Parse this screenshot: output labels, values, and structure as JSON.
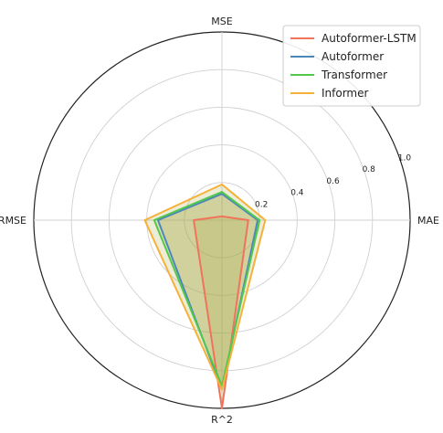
{
  "chart_data": {
    "type": "radar",
    "axes": [
      "MSE",
      "MAE",
      "R^2",
      "RMSE"
    ],
    "radial_ticks": [
      "0.2",
      "0.4",
      "0.6",
      "0.8",
      "1.0"
    ],
    "radial_range": [
      0,
      1.0
    ],
    "grid": true,
    "legend_position": "top-right",
    "series": [
      {
        "name": "Autoformer-LSTM",
        "color": "#f0735a",
        "values": [
          0.02,
          0.14,
          1.0,
          0.15
        ]
      },
      {
        "name": "Autoformer",
        "color": "#4f86b8",
        "values": [
          0.14,
          0.19,
          0.9,
          0.34
        ]
      },
      {
        "name": "Transformer",
        "color": "#52c94a",
        "values": [
          0.15,
          0.2,
          0.88,
          0.36
        ]
      },
      {
        "name": "Informer",
        "color": "#f5b13a",
        "values": [
          0.19,
          0.23,
          0.9,
          0.41
        ]
      }
    ],
    "fill_color": "#a8a84a"
  }
}
